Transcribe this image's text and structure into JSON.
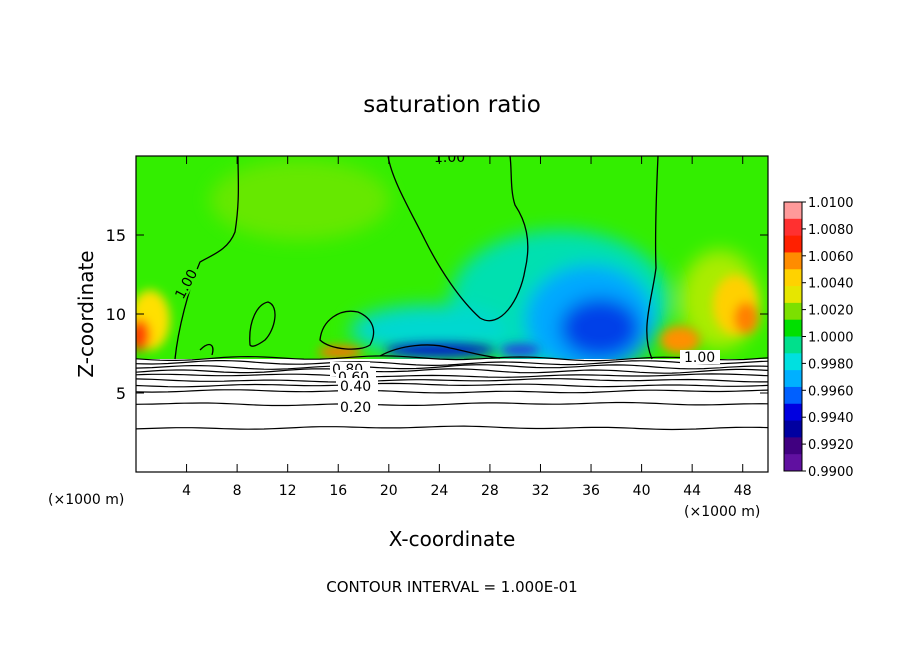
{
  "chart_data": {
    "type": "heatmap",
    "title": "saturation ratio",
    "xlabel": "X-coordinate",
    "ylabel": "Z-coordinate",
    "x_unit_left": "(×1000 m)",
    "x_unit_right": "(×1000 m)",
    "xlim": [
      0,
      50
    ],
    "ylim": [
      0,
      20
    ],
    "x_ticks": [
      "4",
      "8",
      "12",
      "16",
      "20",
      "24",
      "28",
      "32",
      "36",
      "40",
      "44",
      "48"
    ],
    "x_tick_values": [
      4,
      8,
      12,
      16,
      20,
      24,
      28,
      32,
      36,
      40,
      44,
      48
    ],
    "y_ticks": [
      "5",
      "10",
      "15"
    ],
    "y_tick_values": [
      5,
      10,
      15
    ],
    "footer": "CONTOUR INTERVAL = 1.000E-01",
    "colorbar": {
      "labels": [
        "1.0100",
        "1.0080",
        "1.0060",
        "1.0040",
        "1.0020",
        "1.0000",
        "0.9980",
        "0.9960",
        "0.9940",
        "0.9920",
        "0.9900"
      ],
      "values": [
        1.01,
        1.008,
        1.006,
        1.004,
        1.002,
        1.0,
        0.998,
        0.996,
        0.994,
        0.992,
        0.99
      ],
      "colors": [
        "#ff9a9a",
        "#ff3030",
        "#ff2000",
        "#ff8c00",
        "#ffd200",
        "#e6e600",
        "#7ce000",
        "#00e000",
        "#00e08c",
        "#00e0e0",
        "#00b0ff",
        "#0060ff",
        "#0000e0",
        "#0000a0",
        "#400080",
        "#6010a0"
      ]
    },
    "contour_labels": [
      "1.00",
      "1.00",
      "1.00",
      "0.80",
      "0.60",
      "0.40",
      "0.20"
    ],
    "contour_levels": [
      1.0,
      0.9,
      0.8,
      0.7,
      0.6,
      0.5,
      0.4,
      0.3,
      0.2,
      0.1
    ],
    "contour_heights_km": [
      7.2,
      6.9,
      6.65,
      6.4,
      6.1,
      5.8,
      5.5,
      5.1,
      4.3,
      2.8
    ]
  }
}
